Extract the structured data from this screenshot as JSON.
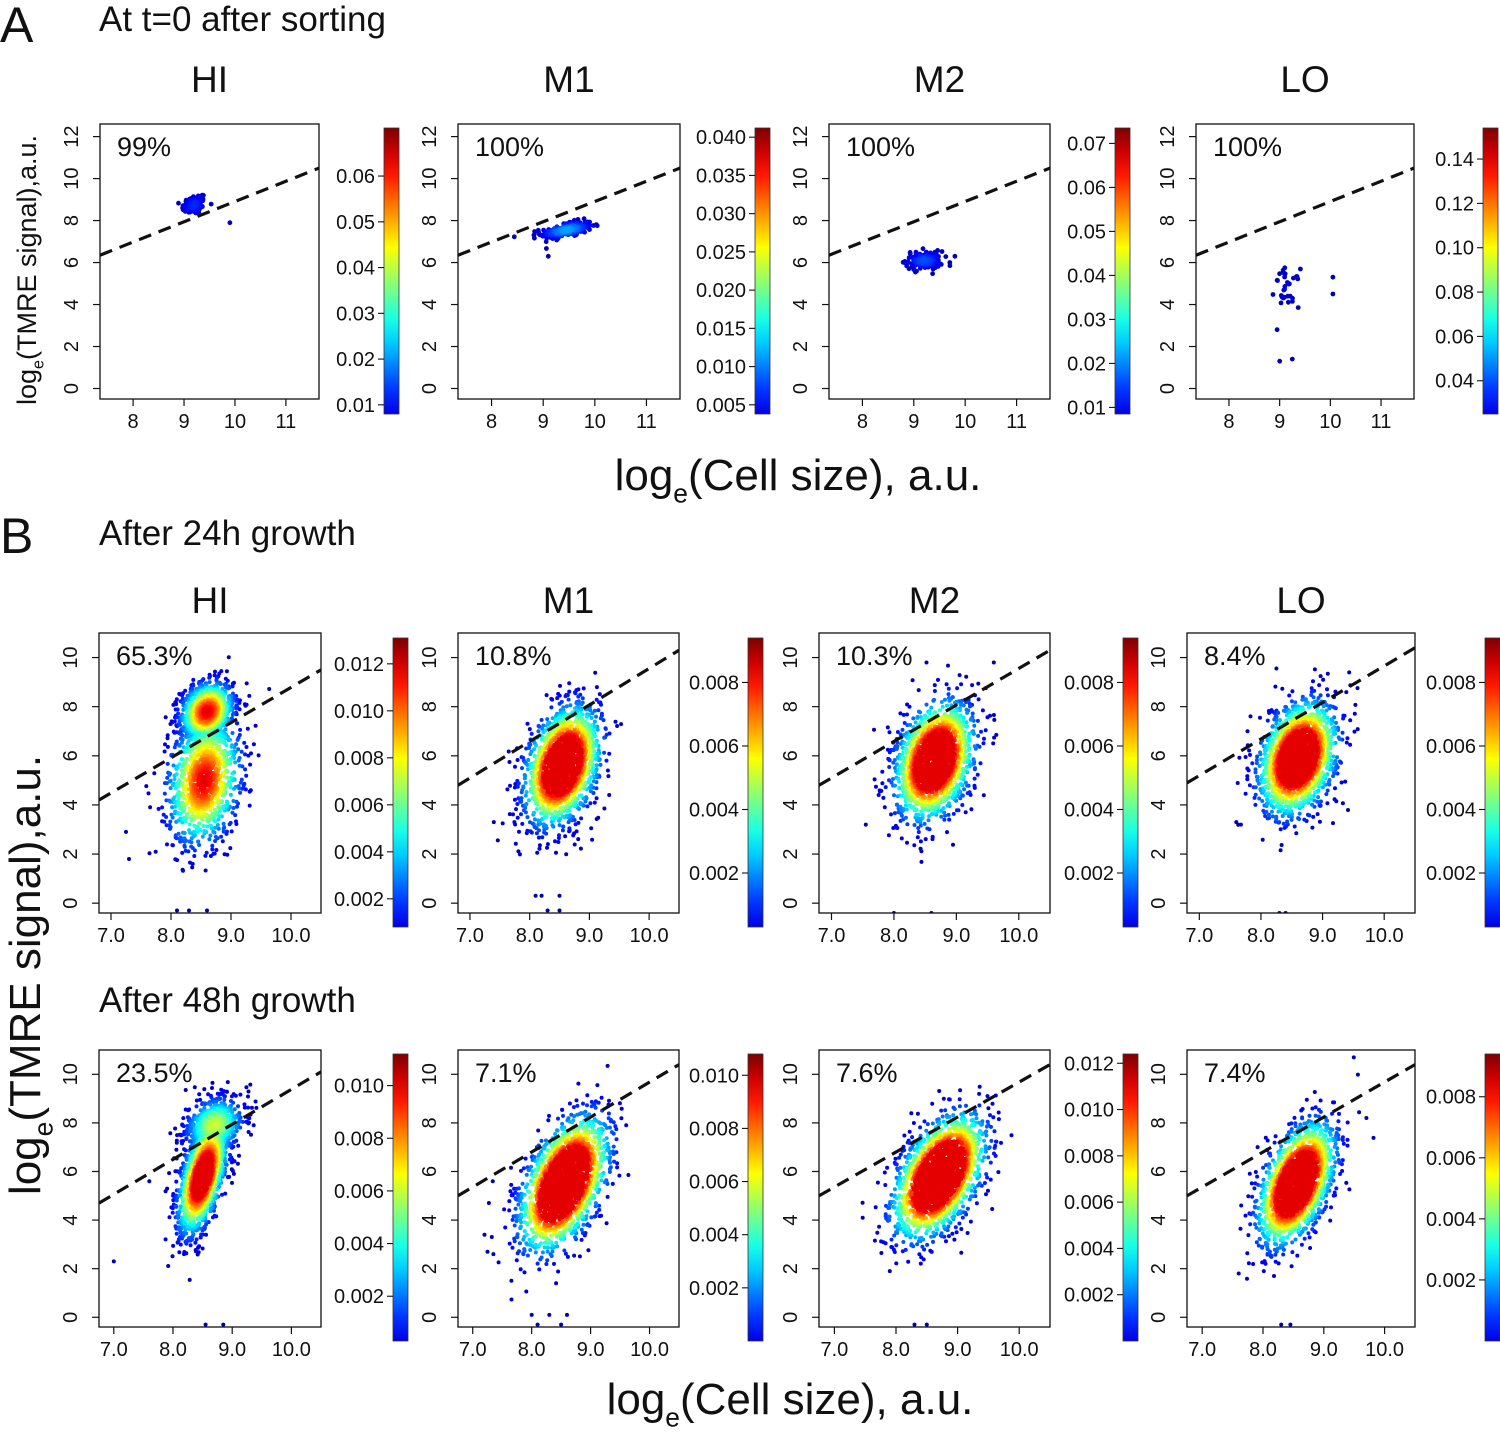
{
  "panels": {
    "A": {
      "letter": "A",
      "title": "At t=0 after sorting"
    },
    "B": {
      "letter": "B",
      "title": "After 24h growth"
    },
    "B2": {
      "title": "After 48h growth"
    }
  },
  "axis_labels": {
    "A": {
      "y": "log_e(TMRE signal),a.u.",
      "x": "log_e(Cell size), a.u."
    },
    "B": {
      "y": "log_e(TMRE signal),a.u.",
      "x": "log_e(Cell size), a.u."
    }
  },
  "colormap": [
    "#00007f",
    "#0000ff",
    "#007fff",
    "#00ffff",
    "#7fff7f",
    "#ffff00",
    "#ff7f00",
    "#ff0000",
    "#7f0000"
  ],
  "chart_data": [
    {
      "id": "A-HI",
      "type": "scatter",
      "title": "HI",
      "annotation": "99%",
      "row": "A",
      "xlim": [
        7.35,
        11.65
      ],
      "ylim": [
        -0.5,
        12.6
      ],
      "xticks": [
        8,
        9,
        10,
        11
      ],
      "xtick_labels": [
        "8",
        "9",
        "10",
        "11"
      ],
      "yticks": [
        0,
        2,
        4,
        6,
        8,
        10,
        12
      ],
      "ytick_labels": [
        "0",
        "2",
        "4",
        "6",
        "8",
        "10",
        "12"
      ],
      "threshold_line": {
        "x": [
          7.35,
          11.65
        ],
        "y": [
          6.35,
          10.5
        ],
        "style": "dashed"
      },
      "clusters": [
        {
          "cx": 9.2,
          "cy": 8.75,
          "sx": 0.12,
          "sy": 0.25,
          "rho": 0.3,
          "n": 90
        }
      ],
      "outliers": [
        [
          9.9,
          7.9
        ]
      ],
      "colorbar": {
        "ticks": [
          0.01,
          0.02,
          0.03,
          0.04,
          0.05,
          0.06
        ],
        "tick_labels": [
          "0.01",
          "0.02",
          "0.03",
          "0.04",
          "0.05",
          "0.06"
        ],
        "range": [
          0.008,
          0.0705
        ]
      }
    },
    {
      "id": "A-M1",
      "type": "scatter",
      "title": "M1",
      "annotation": "100%",
      "row": "A",
      "xlim": [
        7.35,
        11.65
      ],
      "ylim": [
        -0.5,
        12.6
      ],
      "xticks": [
        8,
        9,
        10,
        11
      ],
      "xtick_labels": [
        "8",
        "9",
        "10",
        "11"
      ],
      "yticks": [
        0,
        2,
        4,
        6,
        8,
        10,
        12
      ],
      "ytick_labels": [
        "0",
        "2",
        "4",
        "6",
        "8",
        "10",
        "12"
      ],
      "threshold_line": {
        "x": [
          7.35,
          11.65
        ],
        "y": [
          6.35,
          10.5
        ],
        "style": "dashed"
      },
      "clusters": [
        {
          "cx": 9.45,
          "cy": 7.55,
          "sx": 0.25,
          "sy": 0.2,
          "rho": 0.5,
          "n": 220
        }
      ],
      "outliers": [
        [
          9.1,
          6.3
        ]
      ],
      "colorbar": {
        "ticks": [
          0.005,
          0.01,
          0.015,
          0.02,
          0.025,
          0.03,
          0.035,
          0.04
        ],
        "tick_labels": [
          "0.005",
          "0.010",
          "0.015",
          "0.020",
          "0.025",
          "0.030",
          "0.035",
          "0.040"
        ],
        "range": [
          0.0038,
          0.0412
        ]
      }
    },
    {
      "id": "A-M2",
      "type": "scatter",
      "title": "M2",
      "annotation": "100%",
      "row": "A",
      "xlim": [
        7.35,
        11.65
      ],
      "ylim": [
        -0.5,
        12.6
      ],
      "xticks": [
        8,
        9,
        10,
        11
      ],
      "xtick_labels": [
        "8",
        "9",
        "10",
        "11"
      ],
      "yticks": [
        0,
        2,
        4,
        6,
        8,
        10,
        12
      ],
      "ytick_labels": [
        "0",
        "2",
        "4",
        "6",
        "8",
        "10",
        "12"
      ],
      "threshold_line": {
        "x": [
          7.35,
          11.65
        ],
        "y": [
          6.35,
          10.5
        ],
        "style": "dashed"
      },
      "clusters": [
        {
          "cx": 9.2,
          "cy": 6.1,
          "sx": 0.18,
          "sy": 0.22,
          "rho": 0.0,
          "n": 130
        }
      ],
      "outliers": [
        [
          9.8,
          6.3
        ],
        [
          9.7,
          6.0
        ]
      ],
      "colorbar": {
        "ticks": [
          0.01,
          0.02,
          0.03,
          0.04,
          0.05,
          0.06,
          0.07
        ],
        "tick_labels": [
          "0.01",
          "0.02",
          "0.03",
          "0.04",
          "0.05",
          "0.06",
          "0.07"
        ],
        "range": [
          0.0085,
          0.0735
        ]
      }
    },
    {
      "id": "A-LO",
      "type": "scatter",
      "title": "LO",
      "annotation": "100%",
      "row": "A",
      "xlim": [
        7.35,
        11.65
      ],
      "ylim": [
        -0.5,
        12.6
      ],
      "xticks": [
        8,
        9,
        10,
        11
      ],
      "xtick_labels": [
        "8",
        "9",
        "10",
        "11"
      ],
      "yticks": [
        0,
        2,
        4,
        6,
        8,
        10,
        12
      ],
      "ytick_labels": [
        "0",
        "2",
        "4",
        "6",
        "8",
        "10",
        "12"
      ],
      "threshold_line": {
        "x": [
          7.35,
          11.65
        ],
        "y": [
          6.35,
          10.5
        ],
        "style": "dashed"
      },
      "clusters": [
        {
          "cx": 9.15,
          "cy": 4.8,
          "sx": 0.12,
          "sy": 0.45,
          "rho": 0.0,
          "n": 32
        }
      ],
      "outliers": [
        [
          10.05,
          5.3
        ],
        [
          10.05,
          4.5
        ],
        [
          9.0,
          1.3
        ],
        [
          9.25,
          1.4
        ],
        [
          8.95,
          2.8
        ]
      ],
      "colorbar": {
        "ticks": [
          0.04,
          0.06,
          0.08,
          0.1,
          0.12,
          0.14
        ],
        "tick_labels": [
          "0.04",
          "0.06",
          "0.08",
          "0.10",
          "0.12",
          "0.14"
        ],
        "range": [
          0.025,
          0.154
        ]
      }
    },
    {
      "id": "B24-HI",
      "type": "scatter",
      "title": "HI",
      "annotation": "65.3%",
      "row": "B24",
      "xlim": [
        6.8,
        10.5
      ],
      "ylim": [
        -0.4,
        11.0
      ],
      "xticks": [
        7,
        8,
        9,
        10
      ],
      "xtick_labels": [
        "7.0",
        "8.0",
        "9.0",
        "10.0"
      ],
      "yticks": [
        0,
        2,
        4,
        6,
        8,
        10
      ],
      "ytick_labels": [
        "0",
        "2",
        "4",
        "6",
        "8",
        "10"
      ],
      "threshold_line": {
        "x": [
          6.8,
          10.5
        ],
        "y": [
          4.2,
          9.5
        ],
        "style": "dashed"
      },
      "clusters": [
        {
          "cx": 8.6,
          "cy": 7.8,
          "sx": 0.22,
          "sy": 0.6,
          "rho": 0.2,
          "n": 1100
        },
        {
          "cx": 8.55,
          "cy": 5.0,
          "sx": 0.3,
          "sy": 1.3,
          "rho": 0.2,
          "n": 1100
        }
      ],
      "outliers": [
        [
          7.25,
          2.9
        ],
        [
          7.3,
          1.8
        ],
        [
          8.1,
          -0.3
        ],
        [
          8.3,
          -0.3
        ],
        [
          8.6,
          -0.3
        ]
      ],
      "colorbar": {
        "ticks": [
          0.002,
          0.004,
          0.006,
          0.008,
          0.01,
          0.012
        ],
        "tick_labels": [
          "0.002",
          "0.004",
          "0.006",
          "0.008",
          "0.010",
          "0.012"
        ],
        "range": [
          0.0008,
          0.0131
        ]
      }
    },
    {
      "id": "B24-M1",
      "type": "scatter",
      "title": "M1",
      "annotation": "10.8%",
      "row": "B24",
      "xlim": [
        6.8,
        10.5
      ],
      "ylim": [
        -0.4,
        11.0
      ],
      "xticks": [
        7,
        8,
        9,
        10
      ],
      "xtick_labels": [
        "7.0",
        "8.0",
        "9.0",
        "10.0"
      ],
      "yticks": [
        0,
        2,
        4,
        6,
        8,
        10
      ],
      "ytick_labels": [
        "0",
        "2",
        "4",
        "6",
        "8",
        "10"
      ],
      "threshold_line": {
        "x": [
          6.8,
          10.5
        ],
        "y": [
          4.8,
          10.3
        ],
        "style": "dashed"
      },
      "clusters": [
        {
          "cx": 8.55,
          "cy": 5.6,
          "sx": 0.3,
          "sy": 1.15,
          "rho": 0.35,
          "n": 1900
        }
      ],
      "outliers": [
        [
          7.4,
          3.3
        ],
        [
          8.1,
          0.3
        ],
        [
          8.2,
          0.3
        ],
        [
          8.5,
          0.3
        ],
        [
          8.5,
          -0.3
        ],
        [
          8.3,
          -0.3
        ]
      ],
      "colorbar": {
        "ticks": [
          0.002,
          0.004,
          0.006,
          0.008
        ],
        "tick_labels": [
          "0.002",
          "0.004",
          "0.006",
          "0.008"
        ],
        "range": [
          0.0003,
          0.0094
        ]
      }
    },
    {
      "id": "B24-M2",
      "type": "scatter",
      "title": "M2",
      "annotation": "10.3%",
      "row": "B24",
      "xlim": [
        6.8,
        10.5
      ],
      "ylim": [
        -0.4,
        11.0
      ],
      "xticks": [
        7,
        8,
        9,
        10
      ],
      "xtick_labels": [
        "7.0",
        "8.0",
        "9.0",
        "10.0"
      ],
      "yticks": [
        0,
        2,
        4,
        6,
        8,
        10
      ],
      "ytick_labels": [
        "0",
        "2",
        "4",
        "6",
        "8",
        "10"
      ],
      "threshold_line": {
        "x": [
          6.8,
          10.5
        ],
        "y": [
          4.8,
          10.3
        ],
        "style": "dashed"
      },
      "clusters": [
        {
          "cx": 8.65,
          "cy": 5.8,
          "sx": 0.3,
          "sy": 1.15,
          "rho": 0.3,
          "n": 1900
        }
      ],
      "outliers": [
        [
          7.55,
          3.2
        ],
        [
          8.0,
          -0.4
        ],
        [
          8.6,
          -0.4
        ],
        [
          9.6,
          9.8
        ]
      ],
      "colorbar": {
        "ticks": [
          0.002,
          0.004,
          0.006,
          0.008
        ],
        "tick_labels": [
          "0.002",
          "0.004",
          "0.006",
          "0.008"
        ],
        "range": [
          0.0003,
          0.0094
        ]
      }
    },
    {
      "id": "B24-LO",
      "type": "scatter",
      "title": "LO",
      "annotation": "8.4%",
      "row": "B24",
      "xlim": [
        6.8,
        10.5
      ],
      "ylim": [
        -0.4,
        11.0
      ],
      "xticks": [
        7,
        8,
        9,
        10
      ],
      "xtick_labels": [
        "7.0",
        "8.0",
        "9.0",
        "10.0"
      ],
      "yticks": [
        0,
        2,
        4,
        6,
        8,
        10
      ],
      "ytick_labels": [
        "0",
        "2",
        "4",
        "6",
        "8",
        "10"
      ],
      "threshold_line": {
        "x": [
          6.8,
          10.5
        ],
        "y": [
          4.9,
          10.4
        ],
        "style": "dashed"
      },
      "clusters": [
        {
          "cx": 8.6,
          "cy": 5.9,
          "sx": 0.3,
          "sy": 1.1,
          "rho": 0.3,
          "n": 1900
        }
      ],
      "outliers": [
        [
          7.6,
          3.3
        ],
        [
          8.3,
          -0.4
        ],
        [
          8.4,
          -0.4
        ]
      ],
      "colorbar": {
        "ticks": [
          0.002,
          0.004,
          0.006,
          0.008
        ],
        "tick_labels": [
          "0.002",
          "0.004",
          "0.006",
          "0.008"
        ],
        "range": [
          0.0003,
          0.0094
        ]
      }
    },
    {
      "id": "B48-HI",
      "type": "scatter",
      "title": "",
      "annotation": "23.5%",
      "row": "B48",
      "xlim": [
        6.75,
        10.5
      ],
      "ylim": [
        -0.4,
        11.0
      ],
      "xticks": [
        7,
        8,
        9,
        10
      ],
      "xtick_labels": [
        "7.0",
        "8.0",
        "9.0",
        "10.0"
      ],
      "yticks": [
        0,
        2,
        4,
        6,
        8,
        10
      ],
      "ytick_labels": [
        "0",
        "2",
        "4",
        "6",
        "8",
        "10"
      ],
      "threshold_line": {
        "x": [
          6.75,
          10.5
        ],
        "y": [
          4.7,
          10.1
        ],
        "style": "dashed"
      },
      "clusters": [
        {
          "cx": 8.5,
          "cy": 5.8,
          "sx": 0.2,
          "sy": 1.15,
          "rho": 0.55,
          "n": 1500
        },
        {
          "cx": 8.7,
          "cy": 7.9,
          "sx": 0.25,
          "sy": 0.6,
          "rho": 0.2,
          "n": 600
        }
      ],
      "outliers": [
        [
          7.0,
          2.3
        ],
        [
          7.6,
          5.6
        ],
        [
          8.55,
          -0.3
        ],
        [
          8.85,
          -0.3
        ]
      ],
      "colorbar": {
        "ticks": [
          0.002,
          0.004,
          0.006,
          0.008,
          0.01
        ],
        "tick_labels": [
          "0.002",
          "0.004",
          "0.006",
          "0.008",
          "0.010"
        ],
        "range": [
          0.0003,
          0.0112
        ]
      }
    },
    {
      "id": "B48-M1",
      "type": "scatter",
      "title": "",
      "annotation": "7.1%",
      "row": "B48",
      "xlim": [
        6.75,
        10.5
      ],
      "ylim": [
        -0.4,
        11.0
      ],
      "xticks": [
        7,
        8,
        9,
        10
      ],
      "xtick_labels": [
        "7.0",
        "8.0",
        "9.0",
        "10.0"
      ],
      "yticks": [
        0,
        2,
        4,
        6,
        8,
        10
      ],
      "ytick_labels": [
        "0",
        "2",
        "4",
        "6",
        "8",
        "10"
      ],
      "threshold_line": {
        "x": [
          6.75,
          10.5
        ],
        "y": [
          5.0,
          10.4
        ],
        "style": "dashed"
      },
      "clusters": [
        {
          "cx": 8.55,
          "cy": 5.5,
          "sx": 0.35,
          "sy": 1.3,
          "rho": 0.5,
          "n": 2200
        }
      ],
      "outliers": [
        [
          7.2,
          3.4
        ],
        [
          7.35,
          2.6
        ],
        [
          8.0,
          0.1
        ],
        [
          8.3,
          0.1
        ],
        [
          8.6,
          0.1
        ],
        [
          8.1,
          -0.3
        ],
        [
          8.5,
          -0.3
        ]
      ],
      "colorbar": {
        "ticks": [
          0.002,
          0.004,
          0.006,
          0.008,
          0.01
        ],
        "tick_labels": [
          "0.002",
          "0.004",
          "0.006",
          "0.008",
          "0.010"
        ],
        "range": [
          0.0,
          0.0108
        ]
      }
    },
    {
      "id": "B48-M2",
      "type": "scatter",
      "title": "",
      "annotation": "7.6%",
      "row": "B48",
      "xlim": [
        6.75,
        10.5
      ],
      "ylim": [
        -0.4,
        11.0
      ],
      "xticks": [
        7,
        8,
        9,
        10
      ],
      "xtick_labels": [
        "7.0",
        "8.0",
        "9.0",
        "10.0"
      ],
      "yticks": [
        0,
        2,
        4,
        6,
        8,
        10
      ],
      "ytick_labels": [
        "0",
        "2",
        "4",
        "6",
        "8",
        "10"
      ],
      "threshold_line": {
        "x": [
          6.75,
          10.5
        ],
        "y": [
          5.0,
          10.4
        ],
        "style": "dashed"
      },
      "clusters": [
        {
          "cx": 8.7,
          "cy": 5.8,
          "sx": 0.35,
          "sy": 1.2,
          "rho": 0.5,
          "n": 2200
        }
      ],
      "outliers": [
        [
          7.9,
          1.9
        ],
        [
          8.3,
          -0.3
        ],
        [
          8.5,
          -0.3
        ],
        [
          9.5,
          8.6
        ]
      ],
      "colorbar": {
        "ticks": [
          0.002,
          0.004,
          0.006,
          0.008,
          0.01,
          0.012
        ],
        "tick_labels": [
          "0.002",
          "0.004",
          "0.006",
          "0.008",
          "0.010",
          "0.012"
        ],
        "range": [
          0.0,
          0.0124
        ]
      }
    },
    {
      "id": "B48-LO",
      "type": "scatter",
      "title": "",
      "annotation": "7.4%",
      "row": "B48",
      "xlim": [
        6.75,
        10.5
      ],
      "ylim": [
        -0.4,
        11.0
      ],
      "xticks": [
        7,
        8,
        9,
        10
      ],
      "xtick_labels": [
        "7.0",
        "8.0",
        "9.0",
        "10.0"
      ],
      "yticks": [
        0,
        2,
        4,
        6,
        8,
        10
      ],
      "ytick_labels": [
        "0",
        "2",
        "4",
        "6",
        "8",
        "10"
      ],
      "threshold_line": {
        "x": [
          6.75,
          10.5
        ],
        "y": [
          5.0,
          10.4
        ],
        "style": "dashed"
      },
      "clusters": [
        {
          "cx": 8.55,
          "cy": 5.5,
          "sx": 0.3,
          "sy": 1.2,
          "rho": 0.5,
          "n": 2000
        }
      ],
      "outliers": [
        [
          7.6,
          1.8
        ],
        [
          8.3,
          -0.3
        ],
        [
          8.45,
          -0.3
        ],
        [
          9.7,
          8.2
        ]
      ],
      "colorbar": {
        "ticks": [
          0.002,
          0.004,
          0.006,
          0.008
        ],
        "tick_labels": [
          "0.002",
          "0.004",
          "0.006",
          "0.008"
        ],
        "range": [
          0.0,
          0.0094
        ]
      }
    }
  ]
}
